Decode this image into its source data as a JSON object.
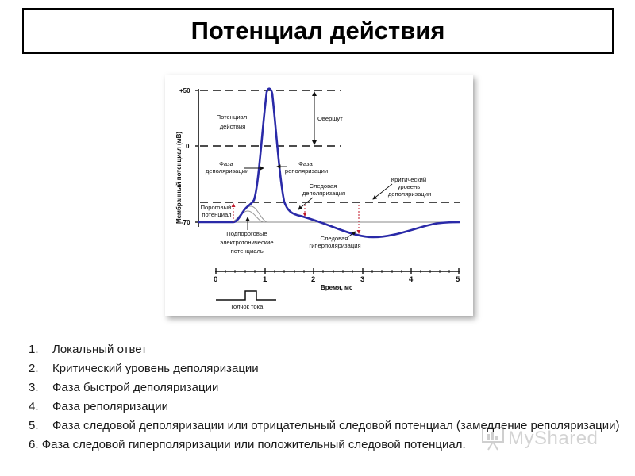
{
  "title": "Потенциал действия",
  "figure": {
    "y_axis_label": "Мембранный потенциал (мВ)",
    "y_ticks": [
      "+50",
      "0",
      "-70"
    ],
    "x_ticks": [
      "0",
      "1",
      "2",
      "3",
      "4",
      "5"
    ],
    "x_axis_label": "Время, мс",
    "labels": {
      "action_potential_1": "Потенциал",
      "action_potential_2": "действия",
      "overshoot": "Овершут",
      "depolarization_1": "Фаза",
      "depolarization_2": "деполяризации",
      "repolarization_1": "Фаза",
      "repolarization_2": "реполяризации",
      "trace_depolarization_1": "Следовая",
      "trace_depolarization_2": "деполяризация",
      "critical_1": "Критический",
      "critical_2": "уровень",
      "critical_3": "деполяризации",
      "threshold_1": "Пороговый",
      "threshold_2": "потенциал",
      "subthreshold_1": "Подпороговые",
      "subthreshold_2": "электротонические",
      "subthreshold_3": "потенциалы",
      "trace_hyperpolarization_1": "Следовая",
      "trace_hyperpolarization_2": "гиперполяризация",
      "stimulus": "Толчок тока"
    }
  },
  "notes": [
    {
      "num": "1.",
      "text": "Локальный ответ"
    },
    {
      "num": "2.",
      "text": "Критический уровень деполяризации"
    },
    {
      "num": "3.",
      "text": "Фаза быстрой деполяризации"
    },
    {
      "num": "4.",
      "text": "Фаза реполяризации"
    },
    {
      "num": "5.",
      "text": "Фаза следовой деполяризации или отрицательный следовой потенциал (замедление реполяризации)"
    },
    {
      "num": "6.",
      "text": "Фаза следовой гиперполяризации или положительный следовой потенциал."
    }
  ],
  "watermark": "MyShared",
  "colors": {
    "curve": "#2a2aa8",
    "marker": "#c0182a",
    "axis": "#111111"
  }
}
